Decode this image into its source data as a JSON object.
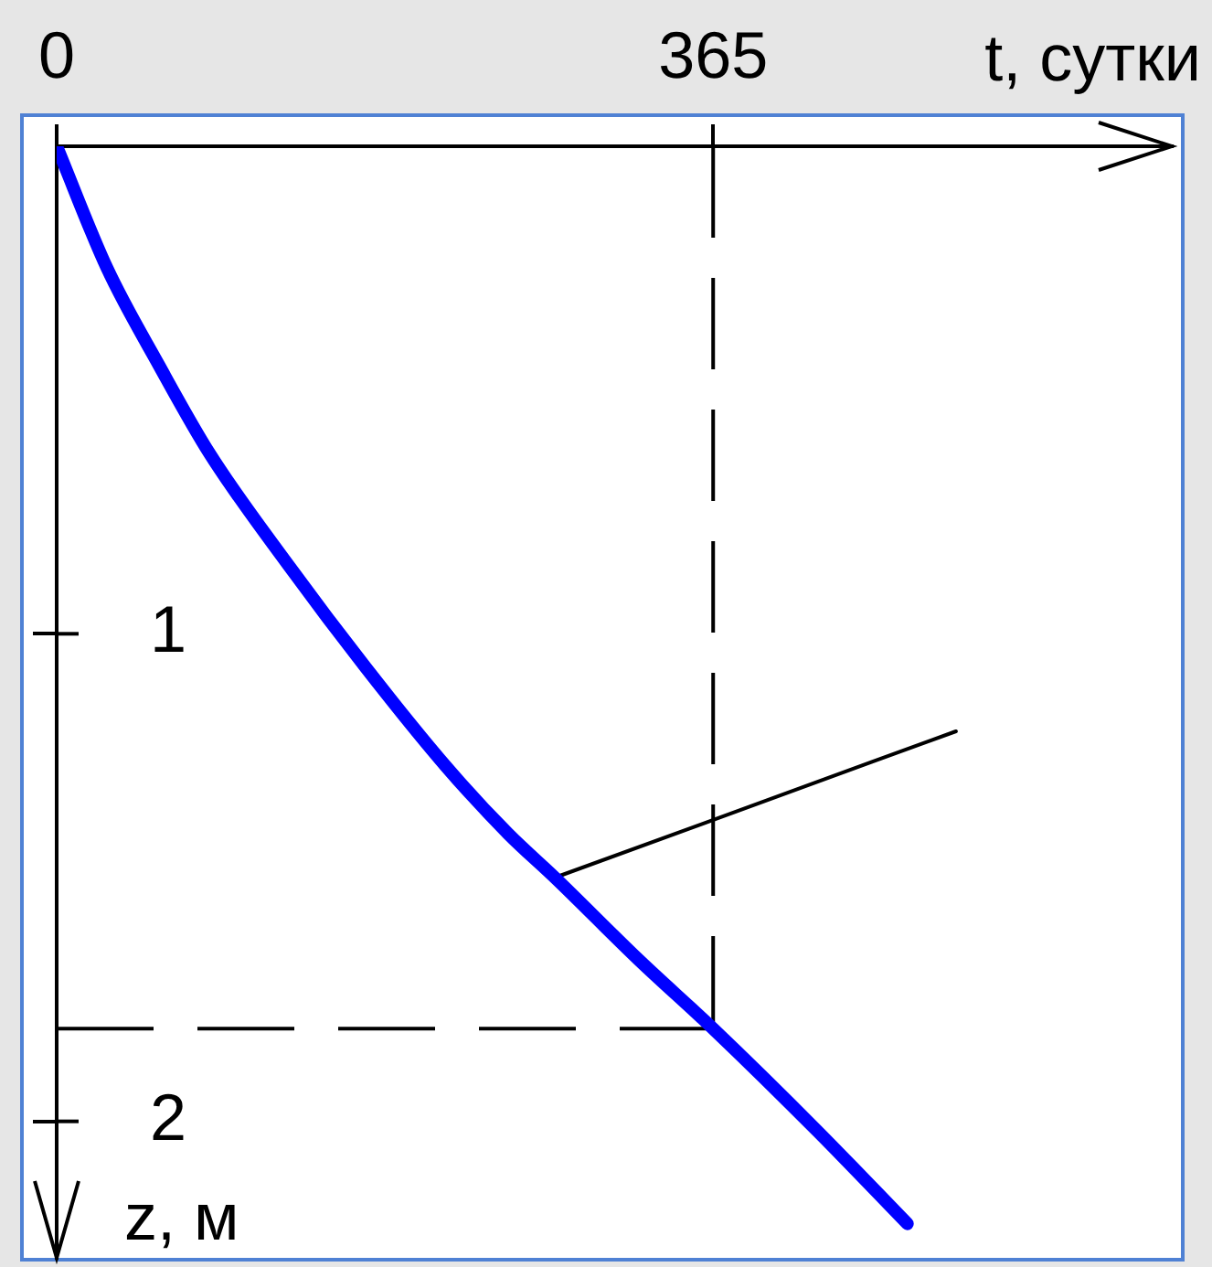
{
  "chart_data": {
    "type": "line",
    "xlabel": "t, сутки",
    "ylabel": "z, м",
    "xlim": [
      0,
      620
    ],
    "ylim": [
      2.28,
      0
    ],
    "xticks": [
      0,
      365
    ],
    "yticks": [
      1,
      2
    ],
    "series": [
      {
        "color": "#0000ff",
        "x": [
          0,
          28,
          57,
          85,
          129,
          172,
          216,
          251,
          277,
          324,
          365,
          423,
          473
        ],
        "values": [
          0,
          0.25,
          0.45,
          0.63,
          0.86,
          1.07,
          1.27,
          1.41,
          1.5,
          1.67,
          1.81,
          2.02,
          2.21
        ]
      },
      {
        "color": "#000000",
        "x": [
          277,
          500
        ],
        "values": [
          1.5,
          1.2
        ]
      }
    ],
    "ref_lines": [
      {
        "axis": "x",
        "value": 365,
        "color": "#000000",
        "line_style": "dashed"
      },
      {
        "axis": "y",
        "value": 1.81,
        "color": "#000000",
        "line_style": "dashed"
      }
    ]
  }
}
